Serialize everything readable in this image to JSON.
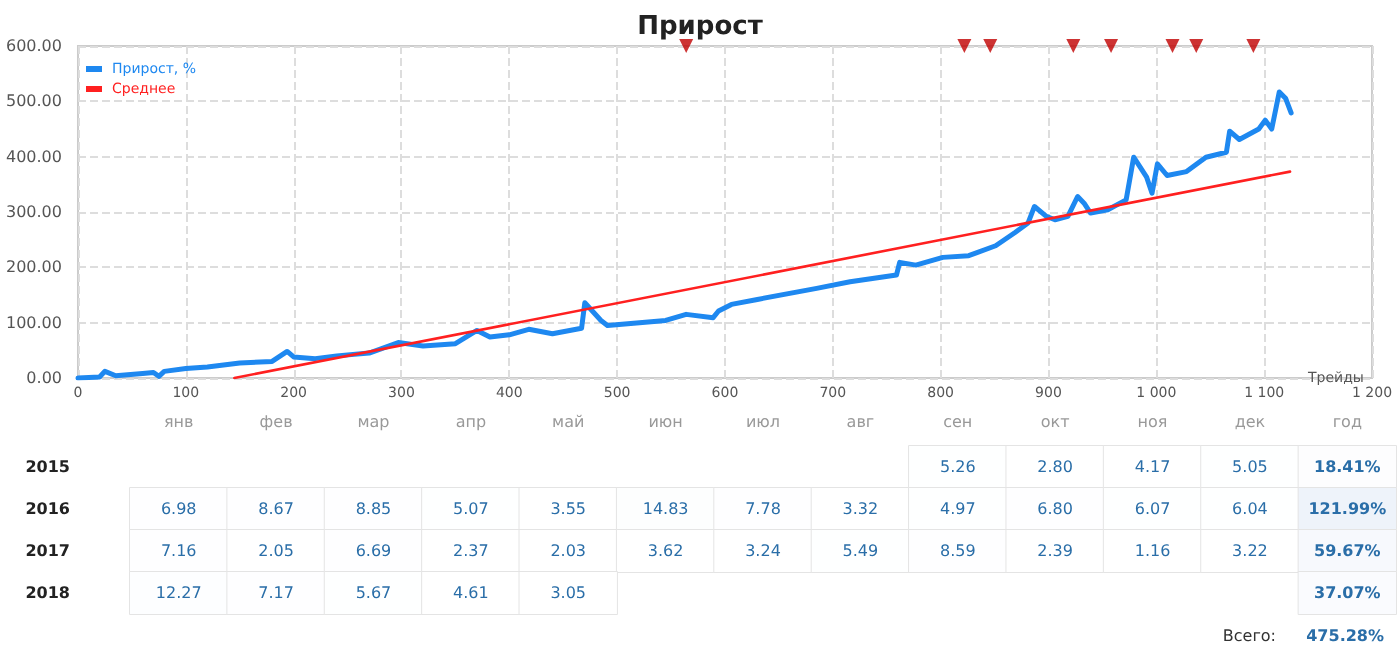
{
  "chart_data": [
    {
      "type": "line",
      "title": "Прирост",
      "xlabel": "Трейды",
      "xlim": [
        0,
        1200
      ],
      "xticks": [
        0,
        100,
        200,
        300,
        400,
        500,
        600,
        700,
        800,
        900,
        {
          "value": 1000,
          "label": "1 000"
        },
        {
          "value": 1100,
          "label": "1 100"
        },
        {
          "value": 1200,
          "label": "1 200"
        }
      ],
      "ylim": [
        0,
        600
      ],
      "yticks": [
        {
          "value": 0,
          "label": "0.00"
        },
        {
          "value": 100,
          "label": "100.00"
        },
        {
          "value": 200,
          "label": "200.00"
        },
        {
          "value": 300,
          "label": "300.00"
        },
        {
          "value": 400,
          "label": "400.00"
        },
        {
          "value": 500,
          "label": "500.00"
        },
        {
          "value": 600,
          "label": "600.00"
        }
      ],
      "grid": true,
      "legend": "top left",
      "marker": "none",
      "line_style": "solid",
      "series": [
        {
          "name": "Прирост, %",
          "color": "#1e88f0",
          "x": [
            0,
            20,
            25,
            35,
            60,
            70,
            75,
            80,
            100,
            120,
            150,
            180,
            194,
            200,
            220,
            240,
            270,
            297,
            320,
            350,
            370,
            382,
            400,
            418,
            440,
            467,
            470,
            485,
            491,
            545,
            564,
            589,
            594,
            606,
            630,
            685,
            716,
            759,
            762,
            777,
            802,
            826,
            851,
            869,
            881,
            887,
            898,
            906,
            918,
            927,
            933,
            939,
            955,
            972,
            979,
            991,
            996,
            1001,
            1010,
            1028,
            1046,
            1065,
            1068,
            1077,
            1095,
            1101,
            1107,
            1114,
            1120,
            1125
          ],
          "values": [
            0,
            2,
            12,
            4,
            8,
            10,
            3,
            12,
            17,
            20,
            27,
            30,
            48,
            38,
            35,
            40,
            45,
            64,
            58,
            62,
            86,
            74,
            78,
            88,
            80,
            90,
            136,
            104,
            95,
            104,
            115,
            109,
            121,
            133,
            142,
            162,
            174,
            186,
            209,
            204,
            218,
            221,
            239,
            263,
            280,
            310,
            292,
            286,
            292,
            328,
            316,
            298,
            304,
            322,
            399,
            363,
            334,
            387,
            366,
            373,
            399,
            408,
            446,
            431,
            450,
            466,
            450,
            517,
            505,
            479
          ]
        },
        {
          "name": "Среднее",
          "color": "#ff2020",
          "x": [
            145,
            1124
          ],
          "values": [
            0,
            373
          ]
        },
        {
          "type": "scatter",
          "marker": "triangle",
          "color": "#c00000",
          "x": [
            564,
            822,
            846,
            923,
            958,
            1015,
            1037,
            1090
          ],
          "values": [
            600,
            600,
            600,
            600,
            600,
            600,
            600,
            600
          ]
        }
      ]
    },
    {
      "type": "heatmap",
      "categories": [
        "янв",
        "фев",
        "мар",
        "апр",
        "май",
        "июн",
        "июл",
        "авг",
        "сен",
        "окт",
        "ноя",
        "дек",
        "год"
      ],
      "y_categories": [
        "2015",
        "2016",
        "2017",
        "2018"
      ],
      "cells": [
        [
          null,
          null,
          null,
          null,
          null,
          null,
          null,
          null,
          5.26,
          2.8,
          4.17,
          5.05,
          18.41
        ],
        [
          6.98,
          8.67,
          8.85,
          5.07,
          3.55,
          14.83,
          7.78,
          3.32,
          4.97,
          6.8,
          6.07,
          6.04,
          121.99
        ],
        [
          7.16,
          2.05,
          6.69,
          2.37,
          2.03,
          3.62,
          3.24,
          5.49,
          8.59,
          2.39,
          1.16,
          3.22,
          59.67
        ],
        [
          12.27,
          7.17,
          5.67,
          4.61,
          3.05,
          null,
          null,
          null,
          null,
          null,
          null,
          null,
          37.07
        ]
      ],
      "cell_labels": [
        [
          null,
          null,
          null,
          null,
          null,
          null,
          null,
          null,
          "5.26",
          "2.80",
          "4.17",
          "5.05",
          "18.41%"
        ],
        [
          "6.98",
          "8.67",
          "8.85",
          "5.07",
          "3.55",
          "14.83",
          "7.78",
          "3.32",
          "4.97",
          "6.80",
          "6.07",
          "6.04",
          "121.99%"
        ],
        [
          "7.16",
          "2.05",
          "6.69",
          "2.37",
          "2.03",
          "3.62",
          "3.24",
          "5.49",
          "8.59",
          "2.39",
          "1.16",
          "3.22",
          "59.67%"
        ],
        [
          "12.27",
          "7.17",
          "5.67",
          "4.61",
          "3.05",
          null,
          null,
          null,
          null,
          null,
          null,
          null,
          "37.07%"
        ]
      ],
      "color": "#ffffff",
      "data_labels": true,
      "annotations": [
        "Всего:",
        "475.28%"
      ]
    }
  ]
}
